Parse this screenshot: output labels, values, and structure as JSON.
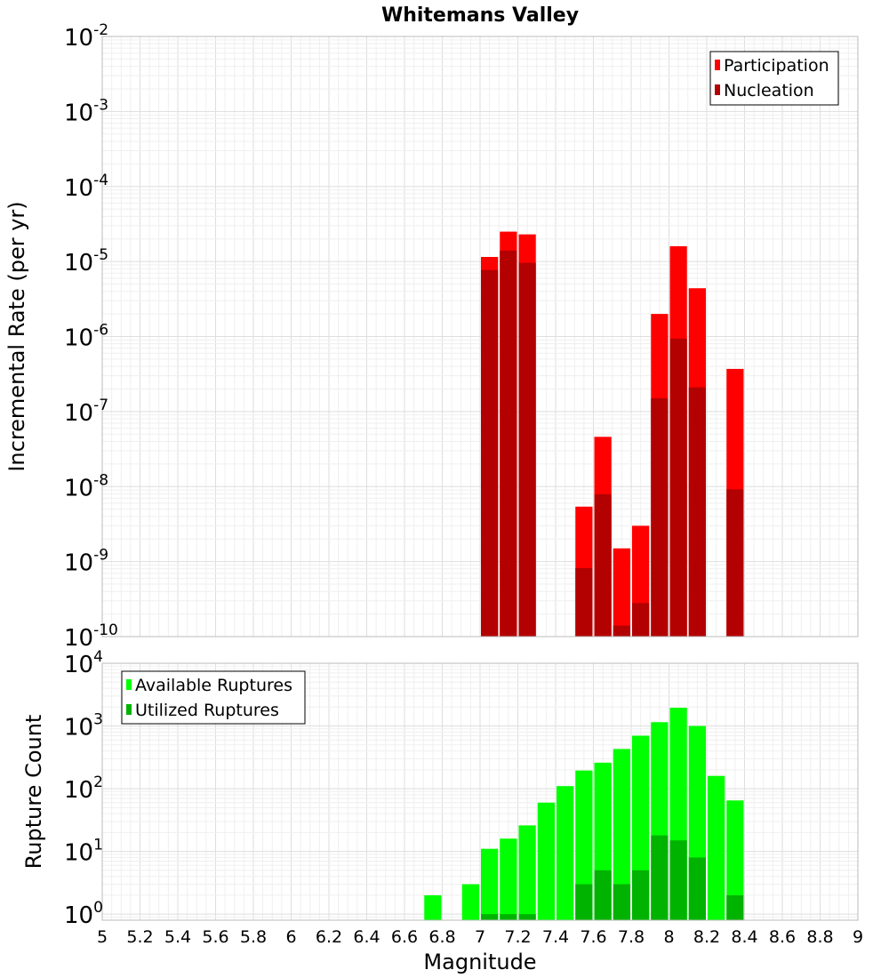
{
  "chart_data": [
    {
      "type": "bar",
      "title": "Whitemans Valley",
      "xlabel": "",
      "ylabel": "Incremental Rate (per yr)",
      "y_scale": "log",
      "ylim": [
        1e-10,
        0.01
      ],
      "xlim": [
        5,
        9
      ],
      "grid": true,
      "legend_position": "top-right",
      "series": [
        {
          "name": "Participation",
          "color": "#ff0000",
          "points": [
            {
              "x": 7.05,
              "y": 1.15e-05
            },
            {
              "x": 7.15,
              "y": 2.5e-05
            },
            {
              "x": 7.25,
              "y": 2.3e-05
            },
            {
              "x": 7.55,
              "y": 5.4e-09
            },
            {
              "x": 7.65,
              "y": 4.6e-08
            },
            {
              "x": 7.75,
              "y": 1.5e-09
            },
            {
              "x": 7.85,
              "y": 3e-09
            },
            {
              "x": 7.95,
              "y": 2e-06
            },
            {
              "x": 8.05,
              "y": 1.6e-05
            },
            {
              "x": 8.15,
              "y": 4.4e-06
            },
            {
              "x": 8.35,
              "y": 3.7e-07
            }
          ]
        },
        {
          "name": "Nucleation",
          "color": "#b30000",
          "points": [
            {
              "x": 7.05,
              "y": 7.7e-06
            },
            {
              "x": 7.15,
              "y": 1.4e-05
            },
            {
              "x": 7.25,
              "y": 9.6e-06
            },
            {
              "x": 7.55,
              "y": 8.2e-10
            },
            {
              "x": 7.65,
              "y": 7.9e-09
            },
            {
              "x": 7.75,
              "y": 1.4e-10
            },
            {
              "x": 7.85,
              "y": 2.8e-10
            },
            {
              "x": 7.95,
              "y": 1.5e-07
            },
            {
              "x": 8.05,
              "y": 9.4e-07
            },
            {
              "x": 8.15,
              "y": 2.1e-07
            },
            {
              "x": 8.35,
              "y": 9.2e-09
            }
          ]
        }
      ],
      "y_ticks": [
        {
          "base": "10",
          "exp": "-10",
          "value": 1e-10
        },
        {
          "base": "10",
          "exp": "-9",
          "value": 1e-09
        },
        {
          "base": "10",
          "exp": "-8",
          "value": 1e-08
        },
        {
          "base": "10",
          "exp": "-7",
          "value": 1e-07
        },
        {
          "base": "10",
          "exp": "-6",
          "value": 1e-06
        },
        {
          "base": "10",
          "exp": "-5",
          "value": 1e-05
        },
        {
          "base": "10",
          "exp": "-4",
          "value": 0.0001
        },
        {
          "base": "10",
          "exp": "-3",
          "value": 0.001
        },
        {
          "base": "10",
          "exp": "-2",
          "value": 0.01
        }
      ]
    },
    {
      "type": "bar",
      "title": "",
      "xlabel": "Magnitude",
      "ylabel": "Rupture Count",
      "y_scale": "log",
      "ylim": [
        0.8,
        10000
      ],
      "xlim": [
        5,
        9
      ],
      "grid": true,
      "legend_position": "top-left",
      "series": [
        {
          "name": "Available Ruptures",
          "color": "#00ff00",
          "points": [
            {
              "x": 6.75,
              "y": 2
            },
            {
              "x": 6.95,
              "y": 3
            },
            {
              "x": 7.05,
              "y": 11
            },
            {
              "x": 7.15,
              "y": 16
            },
            {
              "x": 7.25,
              "y": 26
            },
            {
              "x": 7.35,
              "y": 60
            },
            {
              "x": 7.45,
              "y": 110
            },
            {
              "x": 7.55,
              "y": 195
            },
            {
              "x": 7.65,
              "y": 260
            },
            {
              "x": 7.75,
              "y": 430
            },
            {
              "x": 7.85,
              "y": 700
            },
            {
              "x": 7.95,
              "y": 1150
            },
            {
              "x": 8.05,
              "y": 1950
            },
            {
              "x": 8.15,
              "y": 1000
            },
            {
              "x": 8.25,
              "y": 160
            },
            {
              "x": 8.35,
              "y": 65
            }
          ]
        },
        {
          "name": "Utilized Ruptures",
          "color": "#00b300",
          "points": [
            {
              "x": 7.05,
              "y": 1
            },
            {
              "x": 7.15,
              "y": 1
            },
            {
              "x": 7.25,
              "y": 1
            },
            {
              "x": 7.55,
              "y": 3
            },
            {
              "x": 7.65,
              "y": 5
            },
            {
              "x": 7.75,
              "y": 3
            },
            {
              "x": 7.85,
              "y": 5
            },
            {
              "x": 7.95,
              "y": 18
            },
            {
              "x": 8.05,
              "y": 15
            },
            {
              "x": 8.15,
              "y": 8
            },
            {
              "x": 8.35,
              "y": 2
            }
          ]
        }
      ],
      "y_ticks": [
        {
          "base": "10",
          "exp": "0",
          "value": 1
        },
        {
          "base": "10",
          "exp": "1",
          "value": 10
        },
        {
          "base": "10",
          "exp": "2",
          "value": 100
        },
        {
          "base": "10",
          "exp": "3",
          "value": 1000
        },
        {
          "base": "10",
          "exp": "4",
          "value": 10000
        }
      ]
    }
  ],
  "x_tick_labels": [
    "5",
    "5.2",
    "5.4",
    "5.6",
    "5.8",
    "6",
    "6.2",
    "6.4",
    "6.6",
    "6.8",
    "7",
    "7.2",
    "7.4",
    "7.6",
    "7.8",
    "8",
    "8.2",
    "8.4",
    "8.6",
    "8.8",
    "9"
  ]
}
